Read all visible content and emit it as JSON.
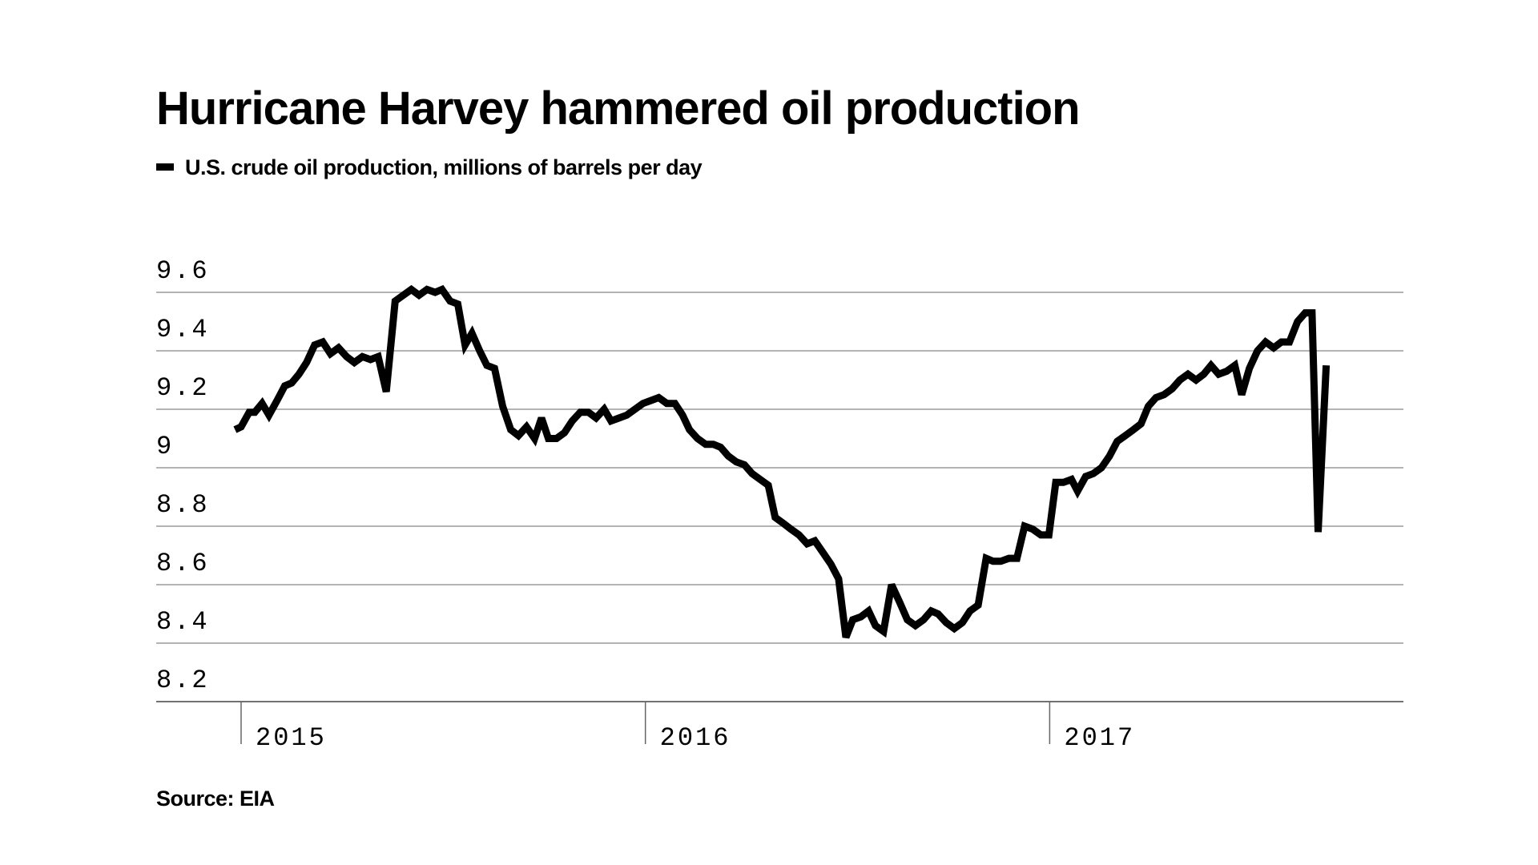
{
  "chart_data": {
    "type": "line",
    "title": "Hurricane Harvey hammered oil production",
    "source": "Source: EIA",
    "x": [
      2014.985,
      2015.0,
      2015.02,
      2015.034,
      2015.052,
      2015.069,
      2015.089,
      2015.108,
      2015.125,
      2015.143,
      2015.162,
      2015.182,
      2015.202,
      2015.221,
      2015.241,
      2015.261,
      2015.28,
      2015.3,
      2015.32,
      2015.339,
      2015.359,
      2015.381,
      2015.401,
      2015.421,
      2015.44,
      2015.46,
      2015.48,
      2015.497,
      2015.517,
      2015.536,
      2015.554,
      2015.571,
      2015.59,
      2015.608,
      2015.627,
      2015.647,
      2015.667,
      2015.686,
      2015.706,
      2015.726,
      2015.743,
      2015.76,
      2015.78,
      2015.8,
      2015.819,
      2015.839,
      2015.859,
      2015.878,
      2015.898,
      2015.915,
      2015.935,
      2015.954,
      2015.974,
      2015.994,
      2016.014,
      2016.033,
      2016.053,
      2016.073,
      2016.092,
      2016.109,
      2016.129,
      2016.149,
      2016.168,
      2016.186,
      2016.205,
      2016.225,
      2016.245,
      2016.264,
      2016.284,
      2016.304,
      2016.321,
      2016.341,
      2016.36,
      2016.38,
      2016.4,
      2016.419,
      2016.439,
      2016.459,
      2016.478,
      2016.496,
      2016.513,
      2016.533,
      2016.552,
      2016.569,
      2016.589,
      2016.609,
      2016.629,
      2016.648,
      2016.668,
      2016.688,
      2016.707,
      2016.724,
      2016.744,
      2016.764,
      2016.784,
      2016.803,
      2016.823,
      2016.843,
      2016.86,
      2016.879,
      2016.899,
      2016.919,
      2016.938,
      2016.958,
      2016.978,
      2016.998,
      2017.015,
      2017.034,
      2017.054,
      2017.069,
      2017.089,
      2017.108,
      2017.128,
      2017.148,
      2017.167,
      2017.187,
      2017.207,
      2017.226,
      2017.244,
      2017.263,
      2017.283,
      2017.303,
      2017.322,
      2017.342,
      2017.362,
      2017.381,
      2017.399,
      2017.418,
      2017.438,
      2017.458,
      2017.475,
      2017.494,
      2017.514,
      2017.534,
      2017.554,
      2017.573,
      2017.593,
      2017.613,
      2017.632,
      2017.649,
      2017.664,
      2017.684
    ],
    "series": [
      {
        "name": "U.S. crude oil production, millions of barrels per day",
        "color": "#000000",
        "values": [
          9.13,
          9.14,
          9.19,
          9.19,
          9.22,
          9.18,
          9.23,
          9.28,
          9.29,
          9.32,
          9.36,
          9.42,
          9.43,
          9.39,
          9.41,
          9.38,
          9.36,
          9.38,
          9.37,
          9.38,
          9.26,
          9.57,
          9.59,
          9.61,
          9.59,
          9.61,
          9.6,
          9.61,
          9.57,
          9.56,
          9.42,
          9.46,
          9.4,
          9.35,
          9.34,
          9.21,
          9.13,
          9.11,
          9.14,
          9.1,
          9.17,
          9.1,
          9.1,
          9.12,
          9.16,
          9.19,
          9.19,
          9.17,
          9.2,
          9.16,
          9.17,
          9.18,
          9.2,
          9.22,
          9.23,
          9.24,
          9.22,
          9.22,
          9.18,
          9.13,
          9.1,
          9.08,
          9.08,
          9.07,
          9.04,
          9.02,
          9.01,
          8.98,
          8.96,
          8.94,
          8.83,
          8.81,
          8.79,
          8.77,
          8.74,
          8.75,
          8.71,
          8.67,
          8.62,
          8.42,
          8.48,
          8.49,
          8.51,
          8.46,
          8.44,
          8.6,
          8.54,
          8.48,
          8.46,
          8.48,
          8.51,
          8.5,
          8.47,
          8.45,
          8.47,
          8.51,
          8.53,
          8.69,
          8.68,
          8.68,
          8.69,
          8.69,
          8.8,
          8.79,
          8.77,
          8.77,
          8.95,
          8.95,
          8.96,
          8.92,
          8.97,
          8.98,
          9.0,
          9.04,
          9.09,
          9.11,
          9.13,
          9.15,
          9.21,
          9.24,
          9.25,
          9.27,
          9.3,
          9.32,
          9.3,
          9.32,
          9.35,
          9.32,
          9.33,
          9.35,
          9.25,
          9.34,
          9.4,
          9.43,
          9.41,
          9.43,
          9.43,
          9.5,
          9.53,
          9.53,
          8.78,
          9.35
        ]
      }
    ],
    "xlim": [
      2014.79,
      2017.875
    ],
    "xticks": [
      2015,
      2016,
      2017
    ],
    "ylim": [
      8.2,
      9.6
    ],
    "yticks": [
      8.2,
      8.4,
      8.6,
      8.8,
      9,
      9.2,
      9.4,
      9.6
    ],
    "grid": true
  }
}
